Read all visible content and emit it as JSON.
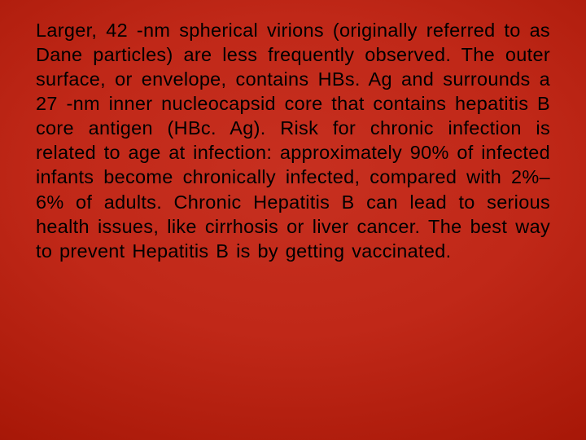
{
  "slide": {
    "background_gradient": {
      "type": "radial",
      "stops": [
        "#c73020",
        "#c02818",
        "#a81808",
        "#8a0600",
        "#6a0000"
      ]
    },
    "text_color": "#000000",
    "font_family": "Verdana",
    "font_size_pt": 18,
    "alignment": "justify",
    "body": "Larger, 42 -nm spherical virions (originally referred to as Dane particles) are less frequently observed. The outer surface, or envelope, contains HBs. Ag and surrounds a 27 -nm inner nucleocapsid core that contains hepatitis B core antigen (HBc. Ag). Risk for chronic infection is related to age at infection: approximately 90% of infected infants become chronically infected, compared with 2%– 6% of adults. Chronic Hepatitis B can lead to serious health issues, like cirrhosis or liver cancer. The best way to prevent Hepatitis B is by getting vaccinated."
  }
}
